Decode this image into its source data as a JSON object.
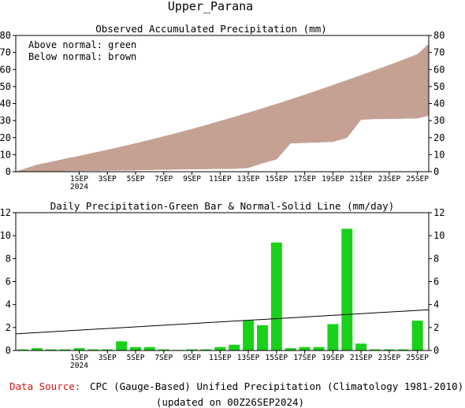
{
  "title": "Upper_Parana",
  "colors": {
    "above_fill": "#19d119",
    "below_fill": "#c5a194",
    "bar_fill": "#19d119",
    "normal_line": "#000000",
    "source_label": "#e01010"
  },
  "x_ticks": [
    {
      "day": 1,
      "label": "1SEP",
      "sub": "2024"
    },
    {
      "day": 3,
      "label": "3SEP",
      "sub": ""
    },
    {
      "day": 5,
      "label": "5SEP",
      "sub": ""
    },
    {
      "day": 7,
      "label": "7SEP",
      "sub": ""
    },
    {
      "day": 9,
      "label": "9SEP",
      "sub": ""
    },
    {
      "day": 11,
      "label": "11SEP",
      "sub": ""
    },
    {
      "day": 13,
      "label": "13SEP",
      "sub": ""
    },
    {
      "day": 15,
      "label": "15SEP",
      "sub": ""
    },
    {
      "day": 17,
      "label": "17SEP",
      "sub": ""
    },
    {
      "day": 19,
      "label": "19SEP",
      "sub": ""
    },
    {
      "day": 21,
      "label": "21SEP",
      "sub": ""
    },
    {
      "day": 23,
      "label": "23SEP",
      "sub": ""
    },
    {
      "day": 25,
      "label": "25SEP",
      "sub": ""
    }
  ],
  "chart_data": [
    {
      "type": "area",
      "title": "Observed Accumulated Precipitation (mm)",
      "legend": [
        "Above normal: green",
        "Below normal: brown"
      ],
      "legend_position": "top-left",
      "xlim": [
        -3.5,
        25.8
      ],
      "ylim": [
        0,
        80
      ],
      "y_ticks": [
        0,
        10,
        20,
        30,
        40,
        50,
        60,
        70,
        80
      ],
      "grid": false,
      "x": [
        -3.5,
        -2,
        -1,
        0,
        1,
        2,
        3,
        4,
        5,
        6,
        7,
        8,
        9,
        10,
        11,
        12,
        13,
        14,
        15,
        16,
        17,
        18,
        19,
        20,
        21,
        22,
        23,
        24,
        25,
        25.8
      ],
      "series": [
        {
          "name": "Observed",
          "values": [
            0,
            0.1,
            0.3,
            0.4,
            0.5,
            0.6,
            0.7,
            0.8,
            0.9,
            1.1,
            1.3,
            1.4,
            1.5,
            1.6,
            1.7,
            1.8,
            2.3,
            5.0,
            7.3,
            16.7,
            17.0,
            17.3,
            17.6,
            20.0,
            30.6,
            31.0,
            31.1,
            31.2,
            31.4,
            33.0
          ]
        },
        {
          "name": "Normal",
          "values": [
            0,
            4.0,
            5.7,
            7.5,
            9.2,
            11.0,
            12.8,
            14.6,
            16.6,
            18.6,
            20.7,
            22.8,
            25.0,
            27.3,
            29.7,
            32.1,
            34.6,
            37.1,
            39.7,
            42.4,
            45.1,
            47.9,
            50.8,
            53.7,
            56.6,
            59.6,
            62.6,
            65.7,
            68.9,
            75.0
          ]
        }
      ]
    },
    {
      "type": "bar",
      "title": "Daily Precipitation-Green Bar & Normal-Solid Line (mm/day)",
      "xlim": [
        -3.5,
        25.8
      ],
      "ylim": [
        0,
        12
      ],
      "y_ticks": [
        0,
        2,
        4,
        6,
        8,
        10,
        12
      ],
      "grid": false,
      "x": [
        -3,
        -2,
        -1,
        0,
        1,
        2,
        3,
        4,
        5,
        6,
        7,
        8,
        9,
        10,
        11,
        12,
        13,
        14,
        15,
        16,
        17,
        18,
        19,
        20,
        21,
        22,
        23,
        24,
        25
      ],
      "series": [
        {
          "name": "Daily",
          "values": [
            0.1,
            0.2,
            0.1,
            0.1,
            0.2,
            0.1,
            0.1,
            0.8,
            0.3,
            0.3,
            0.1,
            0.05,
            0.1,
            0.1,
            0.3,
            0.5,
            2.6,
            2.2,
            9.4,
            0.2,
            0.3,
            0.3,
            2.3,
            10.6,
            0.6,
            0.1,
            0.1,
            0.1,
            2.6
          ]
        },
        {
          "name": "Normal",
          "x": [
            -3.5,
            25.8
          ],
          "values": [
            1.45,
            3.55
          ]
        }
      ]
    }
  ],
  "source": {
    "label": "Data Source:",
    "text": "CPC (Gauge-Based) Unified Precipitation (Climatology 1981-2010)",
    "updated": "(updated on 00Z26SEP2024)"
  }
}
